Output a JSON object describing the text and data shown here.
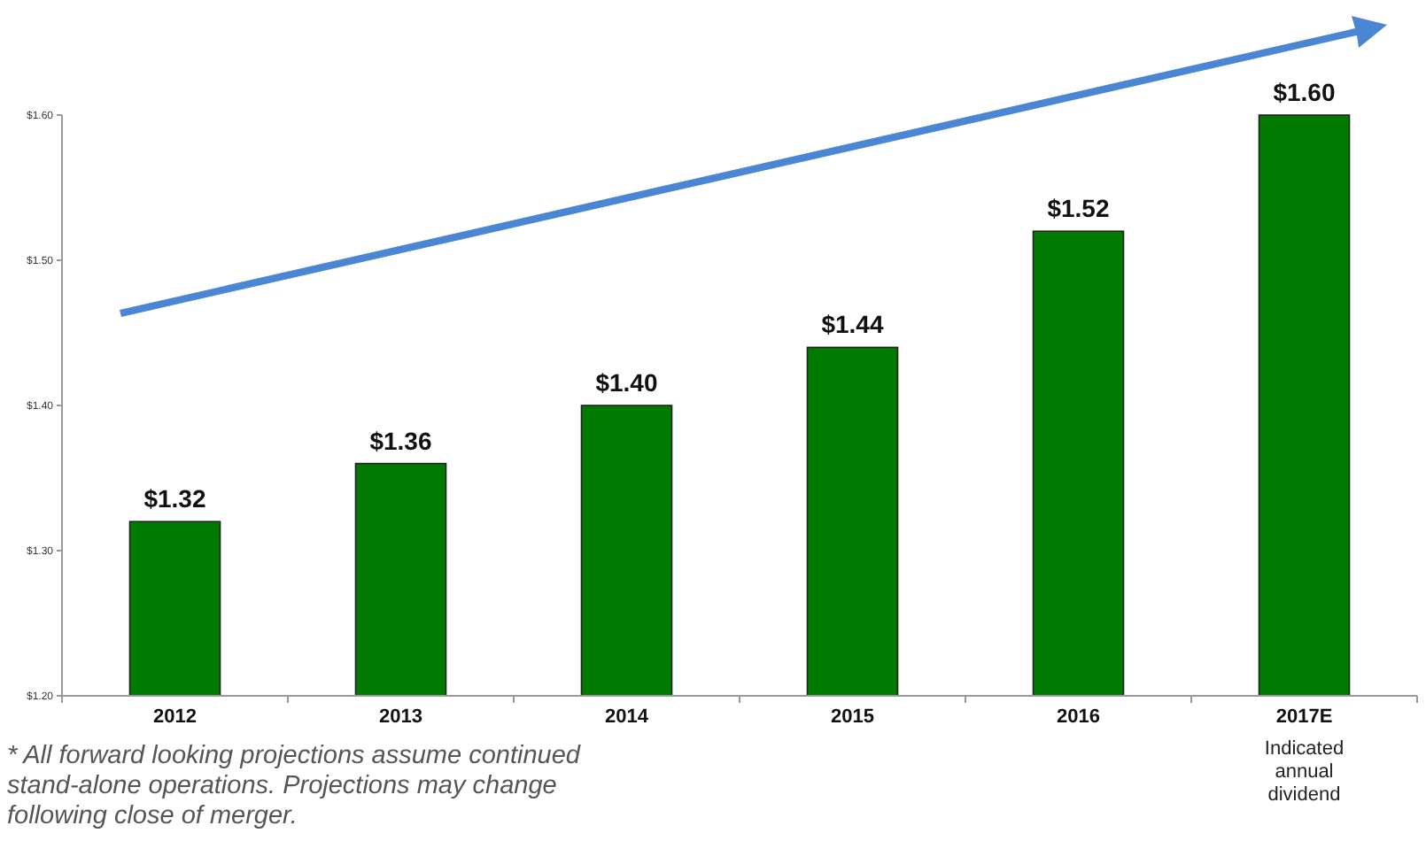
{
  "chart_data": {
    "type": "bar",
    "categories": [
      "2012",
      "2013",
      "2014",
      "2015",
      "2016",
      "2017E"
    ],
    "values": [
      1.32,
      1.36,
      1.4,
      1.44,
      1.52,
      1.6
    ],
    "color": "#007a00",
    "value_labels": [
      "$1.32",
      "$1.36",
      "$1.40",
      "$1.44",
      "$1.52",
      "$1.60"
    ],
    "ylim": [
      1.2,
      1.6
    ],
    "yticks": [
      {
        "value": 1.2,
        "label": "$1.20"
      },
      {
        "value": 1.3,
        "label": "$1.30"
      },
      {
        "value": 1.4,
        "label": "$1.40"
      },
      {
        "value": 1.5,
        "label": "$1.50"
      },
      {
        "value": 1.6,
        "label": "$1.60"
      }
    ],
    "grid": false,
    "annotations": [
      "Indicated annual dividend",
      "* All forward looking projections assume continued stand-alone operations.  Projections may change following close of merger."
    ]
  }
}
